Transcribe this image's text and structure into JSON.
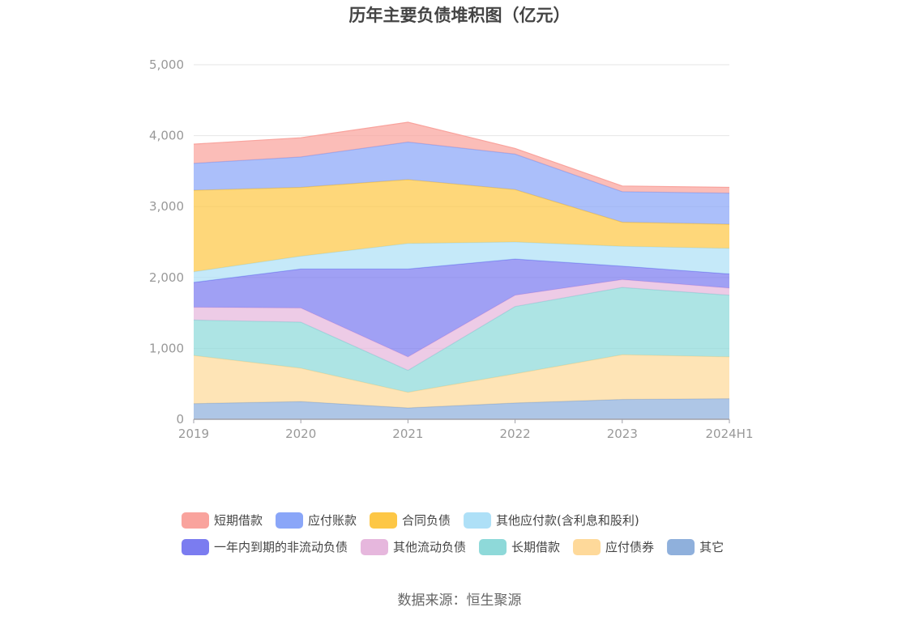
{
  "chart_data": {
    "type": "area",
    "stacked": true,
    "title": "历年主要负债堆积图（亿元）",
    "x": [
      "2019",
      "2020",
      "2021",
      "2022",
      "2023",
      "2024H1"
    ],
    "ylim": [
      0,
      5000
    ],
    "yticks": [
      "0",
      "1,000",
      "2,000",
      "3,000",
      "4,000",
      "5,000"
    ],
    "yticks_values": [
      0,
      1000,
      2000,
      3000,
      4000,
      5000
    ],
    "grid": true,
    "legend_position": "bottom",
    "series": [
      {
        "name": "其它",
        "color": "#8fb0dc",
        "values": [
          220,
          250,
          160,
          230,
          280,
          290
        ]
      },
      {
        "name": "应付债券",
        "color": "#fed99a",
        "values": [
          680,
          470,
          220,
          410,
          630,
          590
        ]
      },
      {
        "name": "长期借款",
        "color": "#8ed9d9",
        "values": [
          500,
          650,
          310,
          950,
          950,
          870
        ]
      },
      {
        "name": "其他流动负债",
        "color": "#e6b7dd",
        "values": [
          180,
          200,
          190,
          160,
          110,
          100
        ]
      },
      {
        "name": "一年内到期的非流动负债",
        "color": "#7b7cf0",
        "values": [
          350,
          550,
          1240,
          510,
          190,
          200
        ]
      },
      {
        "name": "其他应付款(含利息和股利)",
        "color": "#aee0f7",
        "values": [
          150,
          180,
          360,
          240,
          280,
          360
        ]
      },
      {
        "name": "合同负债",
        "color": "#fdc746",
        "values": [
          1150,
          970,
          900,
          740,
          340,
          340
        ]
      },
      {
        "name": "应付账款",
        "color": "#8aa6f8",
        "values": [
          380,
          430,
          530,
          500,
          430,
          440
        ]
      },
      {
        "name": "短期借款",
        "color": "#f9a39d",
        "values": [
          270,
          270,
          280,
          80,
          80,
          80
        ]
      }
    ]
  },
  "legend_order": [
    "短期借款",
    "应付账款",
    "合同负债",
    "其他应付款(含利息和股利)",
    "一年内到期的非流动负债",
    "其他流动负债",
    "长期借款",
    "应付债券",
    "其它"
  ],
  "source": "数据来源：恒生聚源"
}
